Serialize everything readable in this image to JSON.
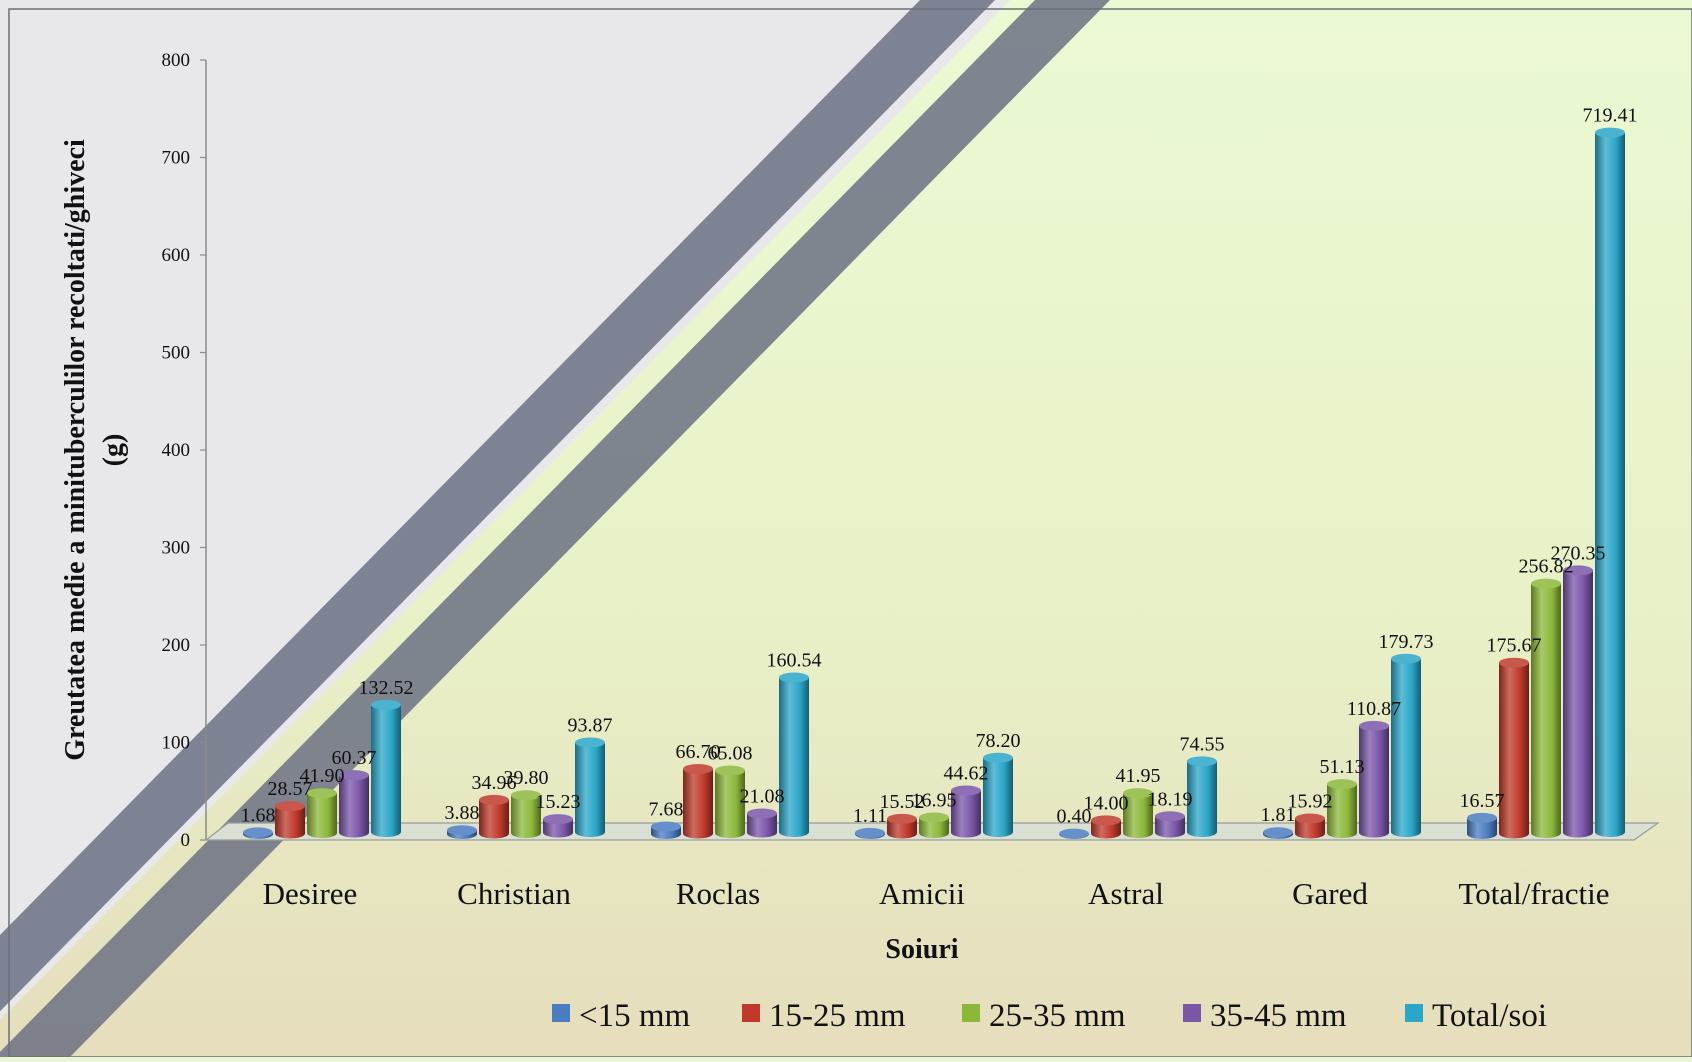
{
  "chart_data": {
    "type": "bar",
    "title": "",
    "xlabel": "Soiuri",
    "ylabel_lines": [
      "Greutatea medie a minituberculilor recoltati/ghiveci",
      "(g)"
    ],
    "ylim": [
      0,
      800
    ],
    "yticks": [
      "0",
      "100",
      "200",
      "300",
      "400",
      "500",
      "600",
      "700",
      "800"
    ],
    "categories": [
      "Desiree",
      "Christian",
      "Roclas",
      "Amicii",
      "Astral",
      "Gared",
      "Total/fractie"
    ],
    "series": [
      {
        "name": "<15 mm",
        "color": "#4a7cc0",
        "values": [
          1.68,
          3.88,
          7.68,
          1.11,
          0.4,
          1.81,
          16.57
        ],
        "labels": [
          "1.68",
          "3.88",
          "7.68",
          "1.11",
          "0.40",
          "1.81",
          "16.57"
        ]
      },
      {
        "name": "15-25 mm",
        "color": "#c0392b",
        "values": [
          28.57,
          34.96,
          66.7,
          15.52,
          14.0,
          15.92,
          175.67
        ],
        "labels": [
          "28.57",
          "34.96",
          "66.70",
          "15.52",
          "14.00",
          "15.92",
          "175.67"
        ]
      },
      {
        "name": "25-35 mm",
        "color": "#8cb83a",
        "values": [
          41.9,
          39.8,
          65.08,
          16.95,
          41.95,
          51.13,
          256.82
        ],
        "labels": [
          "41.90",
          "39.80",
          "65.08",
          "16.95",
          "41.95",
          "51.13",
          "256.82"
        ]
      },
      {
        "name": "35-45 mm",
        "color": "#7a55a8",
        "values": [
          60.37,
          15.23,
          21.08,
          44.62,
          18.19,
          110.87,
          270.35
        ],
        "labels": [
          "60.37",
          "15.23",
          "21.08",
          "44.62",
          "18.19",
          "110.87",
          "270.35"
        ]
      },
      {
        "name": "Total/soi",
        "color": "#2aa6c8",
        "values": [
          132.52,
          93.87,
          160.54,
          78.2,
          74.55,
          179.73,
          719.41
        ],
        "labels": [
          "132.52",
          "93.87",
          "160.54",
          "78.20",
          "74.55",
          "179.73",
          "719.41"
        ]
      }
    ],
    "legend_position": "bottom",
    "grid": false
  }
}
